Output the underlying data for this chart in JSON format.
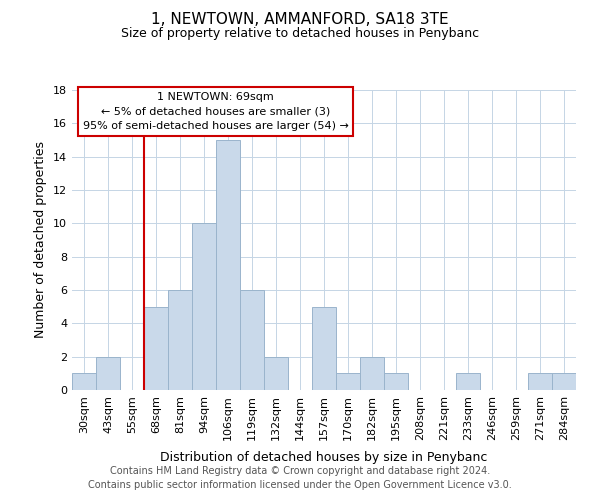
{
  "title": "1, NEWTOWN, AMMANFORD, SA18 3TE",
  "subtitle": "Size of property relative to detached houses in Penybanc",
  "xlabel": "Distribution of detached houses by size in Penybanc",
  "ylabel": "Number of detached properties",
  "footer_line1": "Contains HM Land Registry data © Crown copyright and database right 2024.",
  "footer_line2": "Contains public sector information licensed under the Open Government Licence v3.0.",
  "bin_labels": [
    "30sqm",
    "43sqm",
    "55sqm",
    "68sqm",
    "81sqm",
    "94sqm",
    "106sqm",
    "119sqm",
    "132sqm",
    "144sqm",
    "157sqm",
    "170sqm",
    "182sqm",
    "195sqm",
    "208sqm",
    "221sqm",
    "233sqm",
    "246sqm",
    "259sqm",
    "271sqm",
    "284sqm"
  ],
  "bar_heights": [
    1,
    2,
    0,
    5,
    6,
    10,
    15,
    6,
    2,
    0,
    5,
    1,
    2,
    1,
    0,
    0,
    1,
    0,
    0,
    1,
    1
  ],
  "bar_color": "#c9d9ea",
  "bar_edge_color": "#9ab4cc",
  "ylim": [
    0,
    18
  ],
  "yticks": [
    0,
    2,
    4,
    6,
    8,
    10,
    12,
    14,
    16,
    18
  ],
  "vline_x_index": 3,
  "vline_color": "#cc0000",
  "annotation_title": "1 NEWTOWN: 69sqm",
  "annotation_line1": "← 5% of detached houses are smaller (3)",
  "annotation_line2": "95% of semi-detached houses are larger (54) →",
  "annotation_box_facecolor": "#ffffff",
  "annotation_box_edgecolor": "#cc0000",
  "background_color": "#ffffff",
  "grid_color": "#c5d5e5",
  "title_fontsize": 11,
  "subtitle_fontsize": 9,
  "axis_label_fontsize": 9,
  "tick_fontsize": 8,
  "annotation_fontsize": 8,
  "footer_fontsize": 7
}
